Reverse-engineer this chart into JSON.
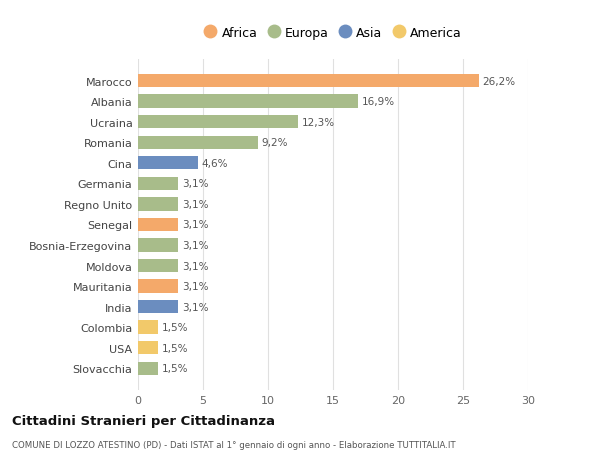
{
  "countries": [
    "Marocco",
    "Albania",
    "Ucraina",
    "Romania",
    "Cina",
    "Germania",
    "Regno Unito",
    "Senegal",
    "Bosnia-Erzegovina",
    "Moldova",
    "Mauritania",
    "India",
    "Colombia",
    "USA",
    "Slovacchia"
  ],
  "values": [
    26.2,
    16.9,
    12.3,
    9.2,
    4.6,
    3.1,
    3.1,
    3.1,
    3.1,
    3.1,
    3.1,
    3.1,
    1.5,
    1.5,
    1.5
  ],
  "continents": [
    "Africa",
    "Europa",
    "Europa",
    "Europa",
    "Asia",
    "Europa",
    "Europa",
    "Africa",
    "Europa",
    "Europa",
    "Africa",
    "Asia",
    "America",
    "America",
    "Europa"
  ],
  "labels": [
    "26,2%",
    "16,9%",
    "12,3%",
    "9,2%",
    "4,6%",
    "3,1%",
    "3,1%",
    "3,1%",
    "3,1%",
    "3,1%",
    "3,1%",
    "3,1%",
    "1,5%",
    "1,5%",
    "1,5%"
  ],
  "colors": {
    "Africa": "#F4A96A",
    "Europa": "#A8BC8A",
    "Asia": "#6B8DBF",
    "America": "#F2C96A"
  },
  "legend_order": [
    "Africa",
    "Europa",
    "Asia",
    "America"
  ],
  "title": "Cittadini Stranieri per Cittadinanza",
  "subtitle": "COMUNE DI LOZZO ATESTINO (PD) - Dati ISTAT al 1° gennaio di ogni anno - Elaborazione TUTTITALIA.IT",
  "xlim": [
    0,
    30
  ],
  "xticks": [
    0,
    5,
    10,
    15,
    20,
    25,
    30
  ],
  "bg_color": "#ffffff",
  "grid_color": "#e0e0e0"
}
